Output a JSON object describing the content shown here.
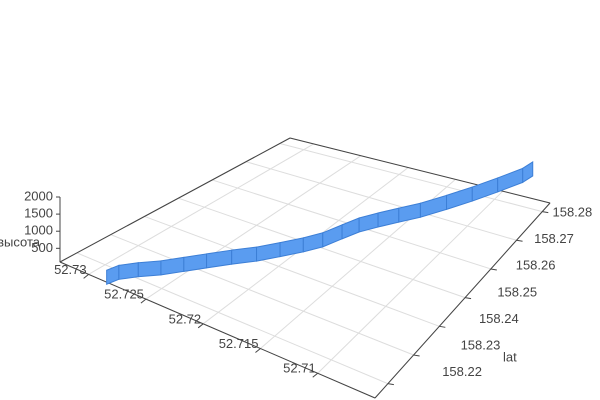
{
  "chart_data": {
    "type": "ribbon3d",
    "x": [
      52.729,
      52.7285,
      52.7275,
      52.7262,
      52.725,
      52.7238,
      52.7225,
      52.7212,
      52.72,
      52.7188,
      52.7178,
      52.7168,
      52.716,
      52.715,
      52.7138,
      52.7125,
      52.711,
      52.7095,
      52.708,
      52.7065,
      52.706
    ],
    "y": [
      158.217,
      158.219,
      158.2215,
      158.224,
      158.227,
      158.23,
      158.2335,
      158.237,
      158.2405,
      158.244,
      158.247,
      158.25,
      158.253,
      158.256,
      158.259,
      158.262,
      158.266,
      158.27,
      158.274,
      158.278,
      158.28
    ],
    "z": [
      250,
      350,
      420,
      500,
      580,
      650,
      700,
      720,
      760,
      800,
      850,
      980,
      1050,
      1080,
      1120,
      1160,
      1220,
      1280,
      1350,
      1420,
      1480
    ],
    "color": "#5a9cf0",
    "xlim": [
      52.705,
      52.7325
    ],
    "xticks": [
      52.71,
      52.715,
      52.72,
      52.725,
      52.73
    ],
    "ylim": [
      158.215,
      158.283
    ],
    "yticks": [
      158.22,
      158.23,
      158.24,
      158.25,
      158.26,
      158.27,
      158.28
    ],
    "zlim": [
      100,
      2000
    ],
    "zticks": [
      500,
      1000,
      1500,
      2000
    ],
    "y_label": "lat",
    "z_label": "высота",
    "grid": true
  }
}
